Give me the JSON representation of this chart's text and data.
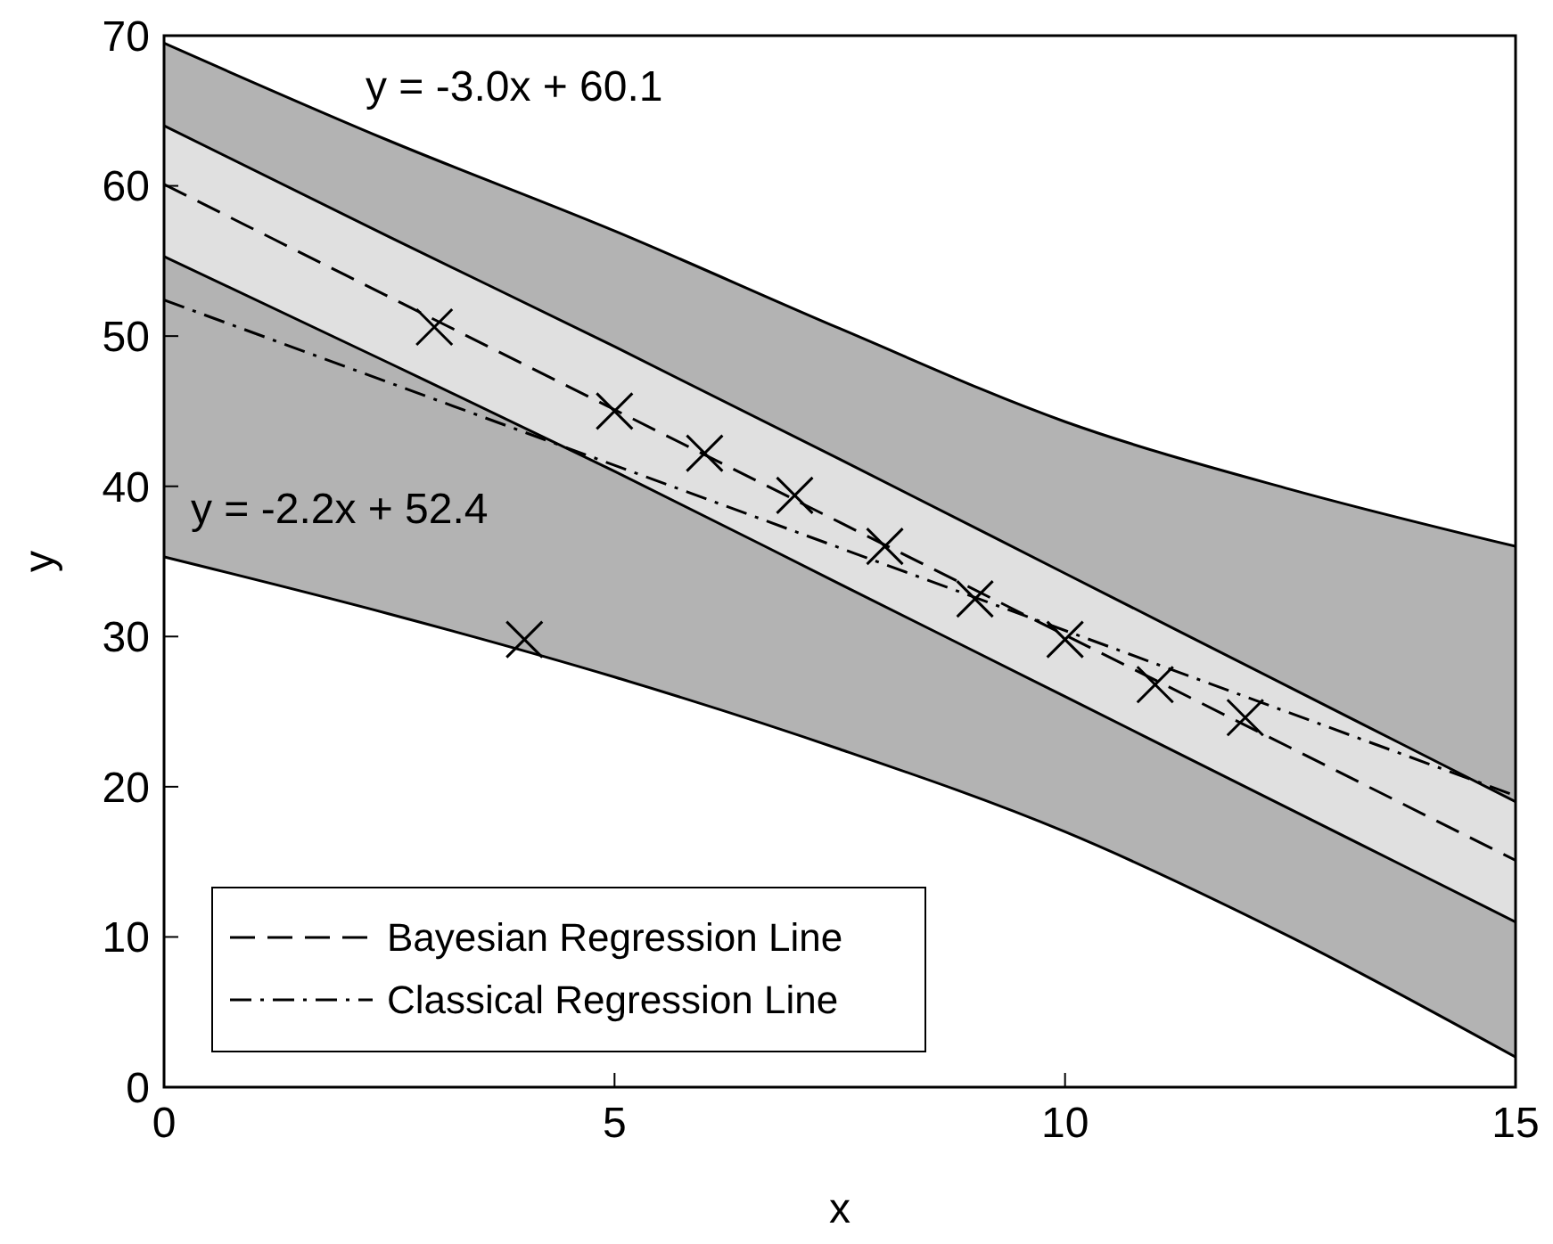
{
  "chart_data": {
    "type": "line",
    "xlabel": "x",
    "ylabel": "y",
    "xlim": [
      0,
      15
    ],
    "ylim": [
      0,
      70
    ],
    "xticks": [
      0,
      5,
      10,
      15
    ],
    "yticks": [
      0,
      10,
      20,
      30,
      40,
      50,
      60,
      70
    ],
    "grid": false,
    "legend": "bottom left",
    "series": [
      {
        "type": "line",
        "color": "#b3b3b3",
        "x": [
          0,
          2.5,
          5,
          7.5,
          10,
          12.5,
          15
        ],
        "values": [
          null,
          null,
          null,
          null,
          null,
          null,
          null
        ],
        "lower": [
          35.3,
          31.5,
          27.3,
          22.5,
          17,
          10,
          2
        ],
        "upper": [
          69.5,
          63,
          57,
          50.5,
          44.3,
          39.8,
          36
        ]
      },
      {
        "type": "line",
        "name": "Bayesian Regression Line",
        "color": "#000000",
        "line_style": "dashed",
        "x": [
          0,
          2.5,
          5,
          7.5,
          10,
          12.5,
          15
        ],
        "values": [
          60.1,
          52.6,
          45.1,
          37.6,
          30.1,
          22.6,
          15.1
        ],
        "lower": [
          55.3,
          48.2,
          41,
          33.5,
          26,
          18.5,
          11
        ],
        "upper": [
          64,
          56.6,
          49.3,
          41.8,
          34.2,
          26.6,
          19
        ]
      },
      {
        "type": "line",
        "color": "#000000",
        "line_style": "solid",
        "x": [
          0,
          2.5,
          5,
          7.5,
          10,
          12.5,
          15
        ],
        "values": [
          35.3,
          31.5,
          27.3,
          22.5,
          17,
          10,
          2
        ]
      },
      {
        "type": "line",
        "color": "#000000",
        "line_style": "solid",
        "x": [
          0,
          2.5,
          5,
          7.5,
          10,
          12.5,
          15
        ],
        "values": [
          69.5,
          63,
          57,
          50.5,
          44.3,
          39.8,
          36
        ]
      },
      {
        "type": "line",
        "color": "#000000",
        "line_style": "solid",
        "x": [
          0,
          2.5,
          5,
          7.5,
          10,
          12.5,
          15
        ],
        "values": [
          55.3,
          48.2,
          41,
          33.5,
          26,
          18.5,
          11
        ]
      },
      {
        "type": "line",
        "color": "#000000",
        "line_style": "solid",
        "x": [
          0,
          2.5,
          5,
          7.5,
          10,
          12.5,
          15
        ],
        "values": [
          64,
          56.6,
          49.3,
          41.8,
          34.2,
          26.6,
          19
        ]
      },
      {
        "type": "line",
        "name": "Classical Regression Line",
        "color": "#000000",
        "line_style": "dashdot",
        "x": [
          0,
          15
        ],
        "values": [
          52.4,
          19.4
        ]
      },
      {
        "type": "scatter",
        "color": "#000000",
        "marker": "cross",
        "x": [
          3,
          4,
          5,
          6,
          7,
          8,
          9,
          10,
          11,
          12
        ],
        "values": [
          50.6,
          29.8,
          45,
          42.2,
          39.4,
          36,
          32.5,
          29.8,
          26.8,
          24.6
        ]
      }
    ],
    "annotations": [
      "y = -3.0x + 60.1",
      "y = -2.2x + 52.4"
    ]
  }
}
